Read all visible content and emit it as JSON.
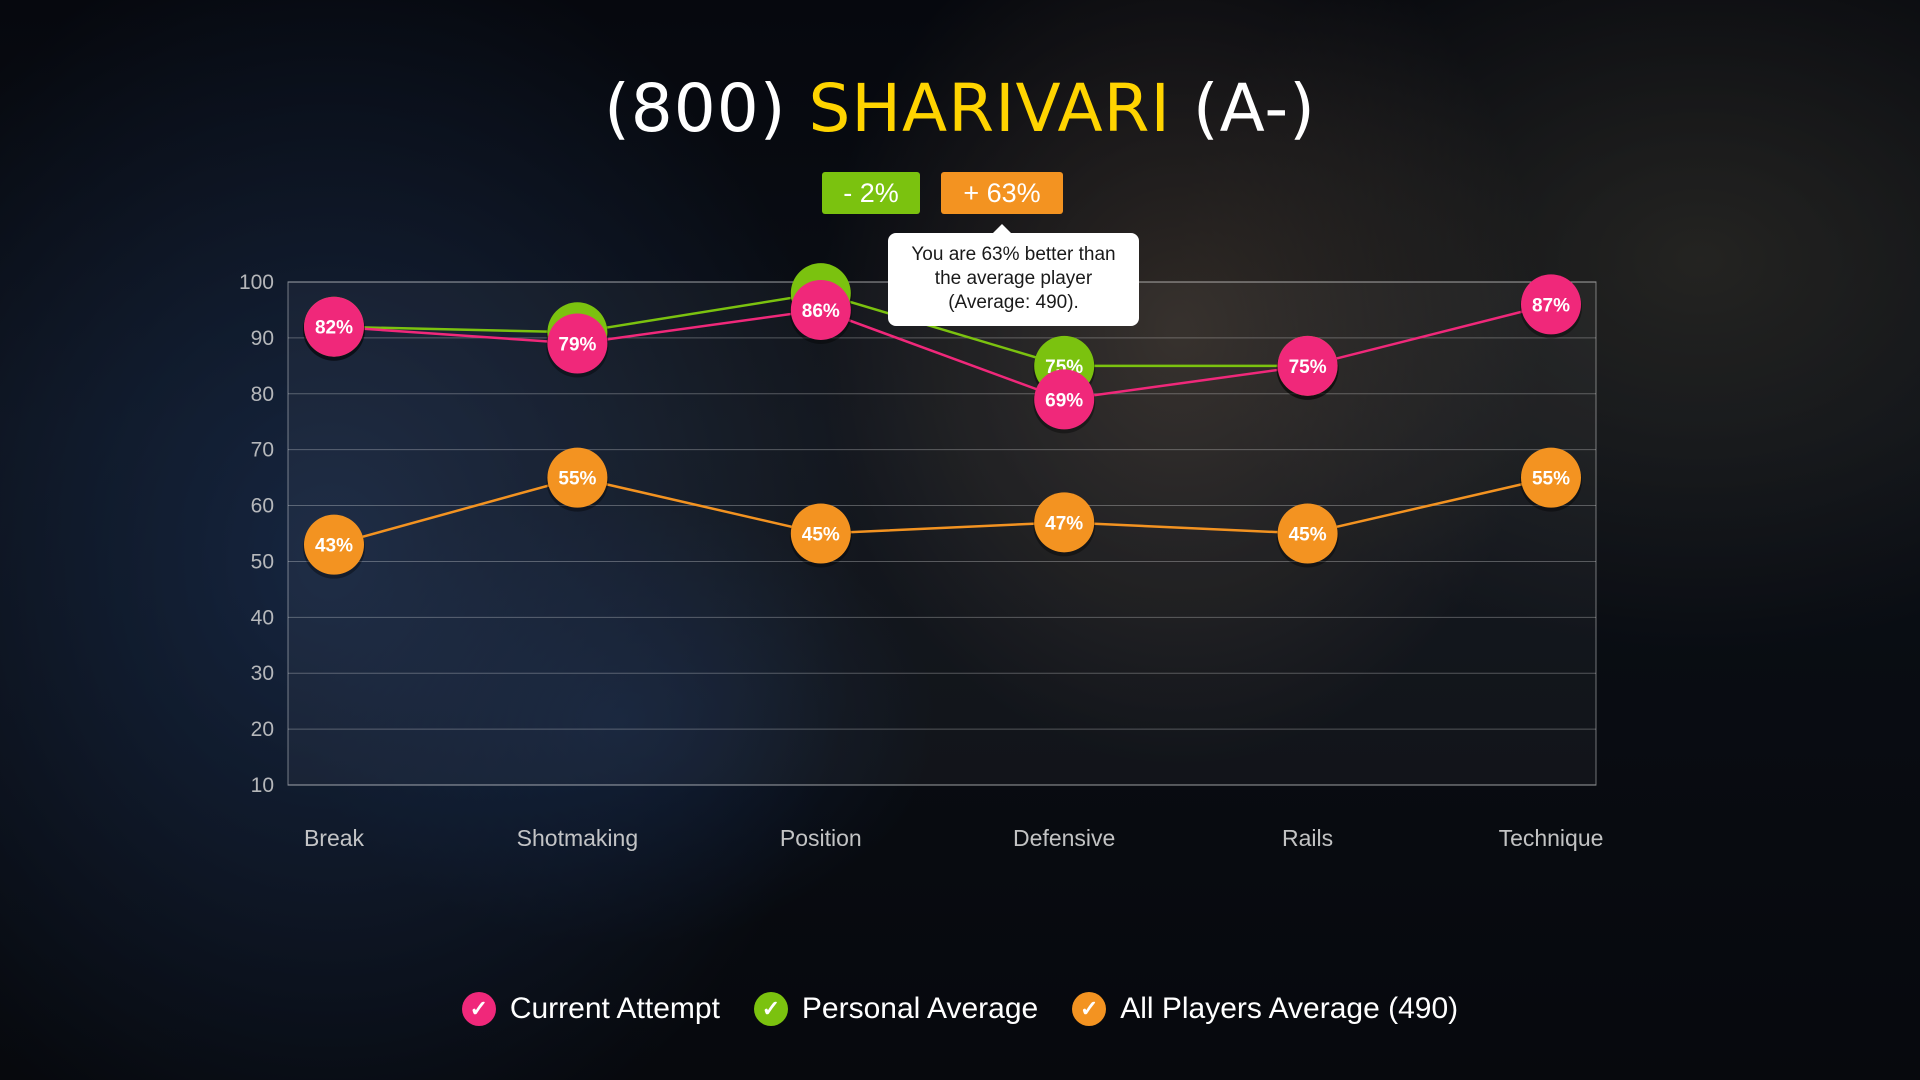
{
  "header": {
    "rating_prefix": "(800)",
    "player_name": "SHARIVARI",
    "grade_suffix": "(A-)"
  },
  "badges": {
    "personal_diff": "- 2%",
    "all_players_diff": "+ 63%"
  },
  "tooltip": {
    "line1": "You are 63% better than",
    "line2": "the average player",
    "line3": "(Average: 490)."
  },
  "colors": {
    "current": "#f0287a",
    "personal": "#7bc20f",
    "all_players": "#f39321",
    "title_accent": "#ffd400"
  },
  "chart_data": {
    "type": "line",
    "title": "",
    "xlabel": "",
    "ylabel": "",
    "ylim": [
      10,
      100
    ],
    "yticks": [
      10,
      20,
      30,
      40,
      50,
      60,
      70,
      80,
      90,
      100
    ],
    "grid": true,
    "legend_position": "bottom",
    "categories": [
      "Break",
      "Shotmaking",
      "Position",
      "Defensive",
      "Rails",
      "Technique"
    ],
    "series": [
      {
        "name": "Current Attempt",
        "color": "#f0287a",
        "values": [
          92,
          89,
          95,
          79,
          85,
          96
        ],
        "labels": [
          "82%",
          "79%",
          "86%",
          "69%",
          "75%",
          "87%"
        ]
      },
      {
        "name": "Personal Average",
        "color": "#7bc20f",
        "values": [
          92,
          91,
          98,
          85,
          85,
          null
        ],
        "labels": [
          "",
          "",
          "",
          "75%",
          "",
          ""
        ]
      },
      {
        "name": "All Players Average (490)",
        "color": "#f39321",
        "values": [
          53,
          65,
          55,
          57,
          55,
          65
        ],
        "labels": [
          "43%",
          "55%",
          "45%",
          "47%",
          "45%",
          "55%"
        ]
      }
    ]
  },
  "legend": [
    {
      "label": "Current Attempt",
      "color": "#f0287a"
    },
    {
      "label": "Personal Average",
      "color": "#7bc20f"
    },
    {
      "label": "All Players Average (490)",
      "color": "#f39321"
    }
  ]
}
